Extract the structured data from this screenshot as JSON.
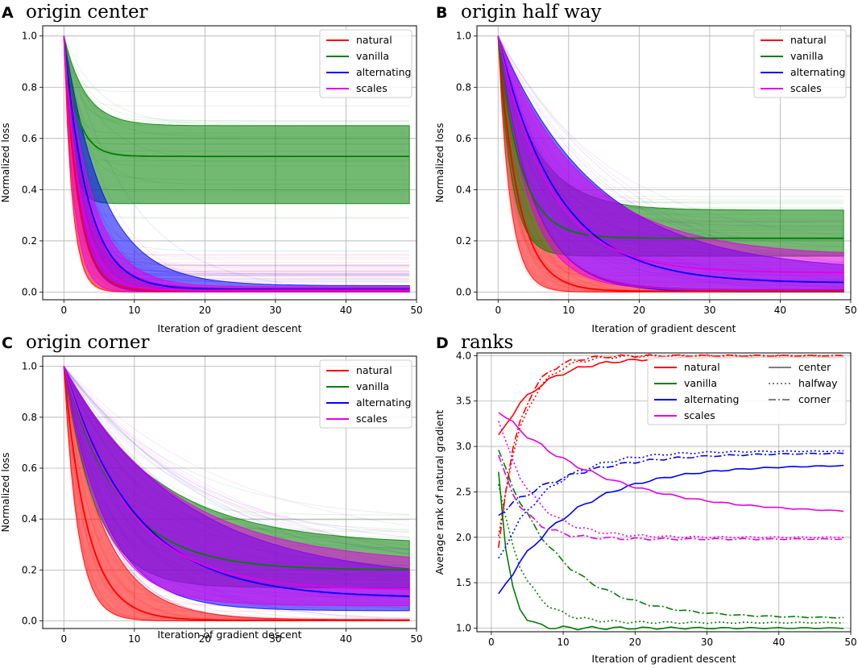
{
  "chart_data": [
    {
      "panel": "A",
      "type": "line",
      "title": "origin center",
      "xlabel": "Iteration of gradient descent",
      "ylabel": "Normalized loss",
      "xlim": [
        -3,
        50
      ],
      "ylim": [
        -0.03,
        1.04
      ],
      "xticks": [
        0,
        10,
        20,
        30,
        40,
        50
      ],
      "yticks": [
        0.0,
        0.2,
        0.4,
        0.6,
        0.8,
        1.0
      ],
      "xtick_labels": [
        "0",
        "10",
        "20",
        "30",
        "40",
        "50"
      ],
      "ytick_labels": [
        "0.0",
        "0.2",
        "0.4",
        "0.6",
        "0.8",
        "1.0"
      ],
      "legend": [
        "natural",
        "vanilla",
        "alternating",
        "scales"
      ],
      "legend_position": "upper right",
      "series": [
        {
          "name": "natural",
          "color": "#ff0000",
          "final_mean": 0.005,
          "decay": 0.5,
          "band_final": [
            0.0,
            0.015
          ],
          "band_w0": 0.14
        },
        {
          "name": "vanilla",
          "color": "#008000",
          "final_mean": 0.53,
          "decay": 0.55,
          "band_final": [
            0.345,
            0.65
          ],
          "band_w0": 0.24
        },
        {
          "name": "alternating",
          "color": "#0000ff",
          "final_mean": 0.01,
          "decay": 0.3,
          "band_final": [
            0.0,
            0.025
          ],
          "band_w0": 0.18
        },
        {
          "name": "scales",
          "color": "#e600e6",
          "final_mean": 0.007,
          "decay": 0.42,
          "band_final": [
            0.0,
            0.02
          ],
          "band_w0": 0.16
        }
      ]
    },
    {
      "panel": "B",
      "type": "line",
      "title": "origin half way",
      "xlabel": "Iteration of gradient descent",
      "ylabel": "Normalized loss",
      "xlim": [
        -3,
        50
      ],
      "ylim": [
        -0.03,
        1.04
      ],
      "xticks": [
        0,
        10,
        20,
        30,
        40,
        50
      ],
      "yticks": [
        0.0,
        0.2,
        0.4,
        0.6,
        0.8,
        1.0
      ],
      "xtick_labels": [
        "0",
        "10",
        "20",
        "30",
        "40",
        "50"
      ],
      "ytick_labels": [
        "0.0",
        "0.2",
        "0.4",
        "0.6",
        "0.8",
        "1.0"
      ],
      "legend": [
        "natural",
        "vanilla",
        "alternating",
        "scales"
      ],
      "legend_position": "upper right",
      "series": [
        {
          "name": "natural",
          "color": "#ff0000",
          "final_mean": 0.003,
          "decay": 0.35,
          "band_final": [
            0.0,
            0.01
          ],
          "band_w0": 0.18
        },
        {
          "name": "vanilla",
          "color": "#008000",
          "final_mean": 0.21,
          "decay": 0.32,
          "band_final": [
            0.14,
            0.32
          ],
          "band_w0": 0.26
        },
        {
          "name": "alternating",
          "color": "#0000ff",
          "final_mean": 0.035,
          "decay": 0.12,
          "band_final": [
            0.0,
            0.08
          ],
          "band_w0": 0.24
        },
        {
          "name": "scales",
          "color": "#e600e6",
          "final_mean": 0.075,
          "decay": 0.14,
          "band_final": [
            0.01,
            0.14
          ],
          "band_w0": 0.26
        }
      ]
    },
    {
      "panel": "C",
      "type": "line",
      "title": "origin corner",
      "xlabel": "Iteration of gradient descent",
      "ylabel": "Normalized loss",
      "xlim": [
        -3,
        50
      ],
      "ylim": [
        -0.03,
        1.04
      ],
      "xticks": [
        0,
        10,
        20,
        30,
        40,
        50
      ],
      "yticks": [
        0.0,
        0.2,
        0.4,
        0.6,
        0.8,
        1.0
      ],
      "xtick_labels": [
        "0",
        "10",
        "20",
        "30",
        "40",
        "50"
      ],
      "ytick_labels": [
        "0.0",
        "0.2",
        "0.4",
        "0.6",
        "0.8",
        "1.0"
      ],
      "legend": [
        "natural",
        "vanilla",
        "alternating",
        "scales"
      ],
      "legend_position": "upper right",
      "series": [
        {
          "name": "natural",
          "color": "#ff0000",
          "final_mean": 0.002,
          "decay": 0.3,
          "band_final": [
            0.0,
            0.005
          ],
          "band_w0": 0.16
        },
        {
          "name": "vanilla",
          "color": "#008000",
          "final_mean": 0.2,
          "decay": 0.13,
          "band_final": [
            0.13,
            0.3
          ],
          "band_w0": 0.26
        },
        {
          "name": "alternating",
          "color": "#0000ff",
          "final_mean": 0.09,
          "decay": 0.1,
          "band_final": [
            0.04,
            0.16
          ],
          "band_w0": 0.3
        },
        {
          "name": "scales",
          "color": "#e600e6",
          "final_mean": 0.12,
          "decay": 0.11,
          "band_final": [
            0.06,
            0.22
          ],
          "band_w0": 0.3
        }
      ]
    },
    {
      "panel": "D",
      "type": "line",
      "title": "ranks",
      "xlabel": "Iteration of gradient descent",
      "ylabel": "Average rank of natural gradient",
      "xlim": [
        -2,
        50
      ],
      "ylim": [
        0.96,
        4.03
      ],
      "xticks": [
        0,
        10,
        20,
        30,
        40,
        50
      ],
      "yticks": [
        1.0,
        1.5,
        2.0,
        2.5,
        3.0,
        3.5,
        4.0
      ],
      "xtick_labels": [
        "0",
        "10",
        "20",
        "30",
        "40",
        "50"
      ],
      "ytick_labels": [
        "1.0",
        "1.5",
        "2.0",
        "2.5",
        "3.0",
        "3.5",
        "4.0"
      ],
      "legend": [
        "natural",
        "vanilla",
        "alternating",
        "scales"
      ],
      "style_legend": [
        "center",
        "halfway",
        "corner"
      ],
      "legend_position": "upper right",
      "x": [
        1,
        2,
        3,
        4,
        5,
        6,
        7,
        8,
        9,
        10,
        11,
        12,
        13,
        14,
        15,
        16,
        17,
        18,
        19,
        20,
        21,
        22,
        23,
        24,
        25,
        26,
        27,
        28,
        29,
        30,
        31,
        32,
        33,
        34,
        35,
        36,
        37,
        38,
        39,
        40,
        41,
        42,
        43,
        44,
        45,
        46,
        47,
        48,
        49
      ],
      "series": [
        {
          "name": "natural",
          "style": "center",
          "color": "#ff0000",
          "start": 3.1,
          "end": 3.98,
          "k": 0.18
        },
        {
          "name": "natural",
          "style": "halfway",
          "color": "#ff0000",
          "start": 2.0,
          "end": 4.0,
          "k": 0.3
        },
        {
          "name": "natural",
          "style": "corner",
          "color": "#ff0000",
          "start": 1.9,
          "end": 4.0,
          "k": 0.35
        },
        {
          "name": "vanilla",
          "style": "center",
          "color": "#008000",
          "start": 2.75,
          "end": 1.0,
          "k": 0.7
        },
        {
          "name": "vanilla",
          "style": "halfway",
          "color": "#008000",
          "start": 2.6,
          "end": 1.06,
          "k": 0.3
        },
        {
          "name": "vanilla",
          "style": "corner",
          "color": "#008000",
          "start": 2.95,
          "end": 1.11,
          "k": 0.12
        },
        {
          "name": "alternating",
          "style": "center",
          "color": "#0000ff",
          "start": 1.35,
          "end": 2.8,
          "k": 0.1
        },
        {
          "name": "alternating",
          "style": "halfway",
          "color": "#0000ff",
          "start": 1.75,
          "end": 2.95,
          "k": 0.15
        },
        {
          "name": "alternating",
          "style": "corner",
          "color": "#0000ff",
          "start": 2.25,
          "end": 2.93,
          "k": 0.1
        },
        {
          "name": "scales",
          "style": "center",
          "color": "#e600e6",
          "start": 3.4,
          "end": 2.25,
          "k": 0.07
        },
        {
          "name": "scales",
          "style": "halfway",
          "color": "#e600e6",
          "start": 3.3,
          "end": 2.0,
          "k": 0.22
        },
        {
          "name": "scales",
          "style": "corner",
          "color": "#e600e6",
          "start": 2.9,
          "end": 1.98,
          "k": 0.3
        }
      ]
    }
  ]
}
